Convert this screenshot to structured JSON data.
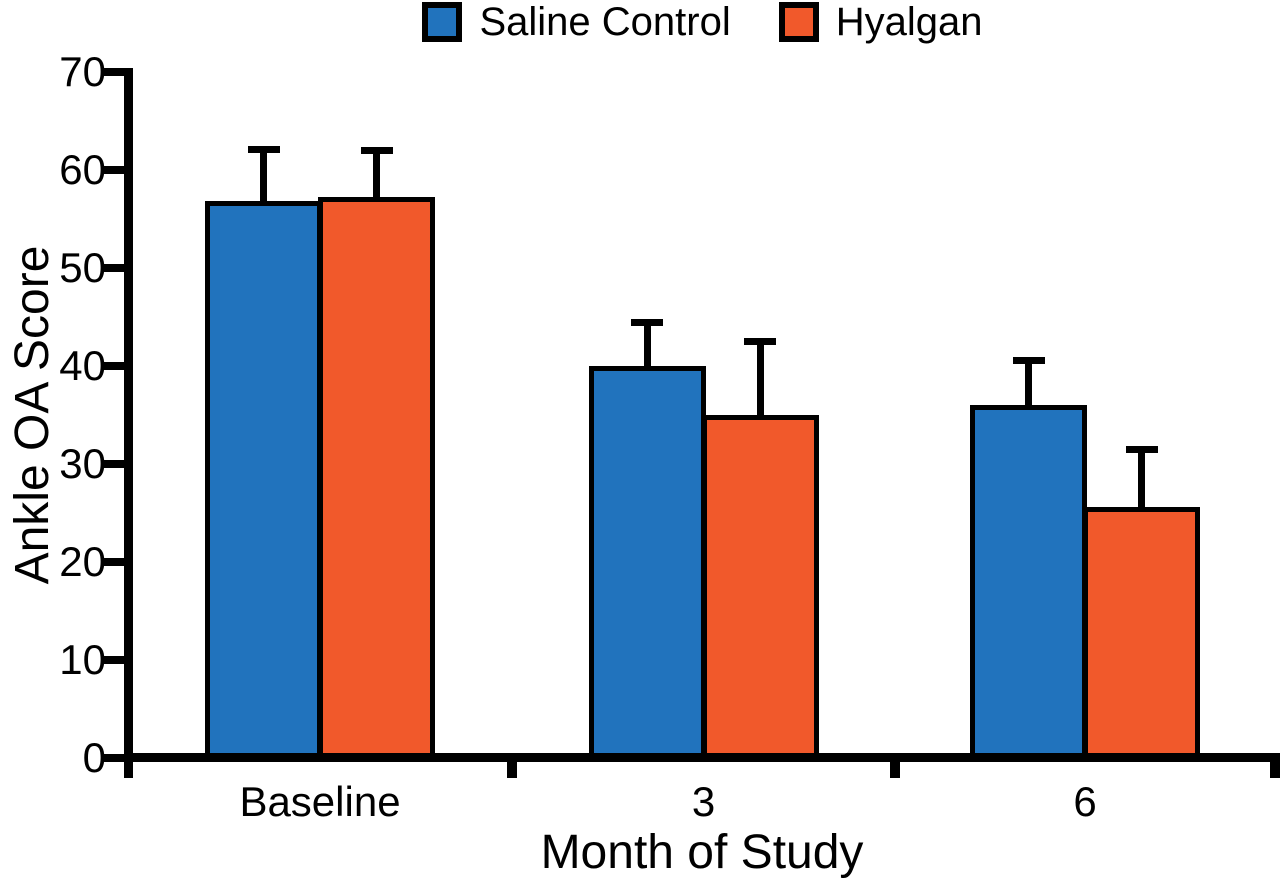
{
  "figure": {
    "background": "#ffffff"
  },
  "chart_data": {
    "type": "bar",
    "title": "",
    "categories": [
      "Baseline",
      "3",
      "6"
    ],
    "series": [
      {
        "name": "Saline Control",
        "color": "#2173BD",
        "values": [
          56.8,
          40.0,
          36.0
        ],
        "errors_upper": [
          5.6,
          4.8,
          4.9
        ]
      },
      {
        "name": "Hyalgan",
        "color": "#F1592B",
        "values": [
          57.2,
          35.0,
          25.6
        ],
        "errors_upper": [
          5.1,
          7.8,
          6.2
        ]
      }
    ],
    "xlabel": "Month of Study",
    "ylabel": "Ankle OA Score",
    "ylim": [
      0,
      70
    ],
    "yticks": [
      0,
      10,
      20,
      30,
      40,
      50,
      60,
      70
    ],
    "legend_position": "top-center",
    "grid": false,
    "error_bars": "upper-only",
    "axis_color": "#000000",
    "error_bar_color": "#000000"
  }
}
